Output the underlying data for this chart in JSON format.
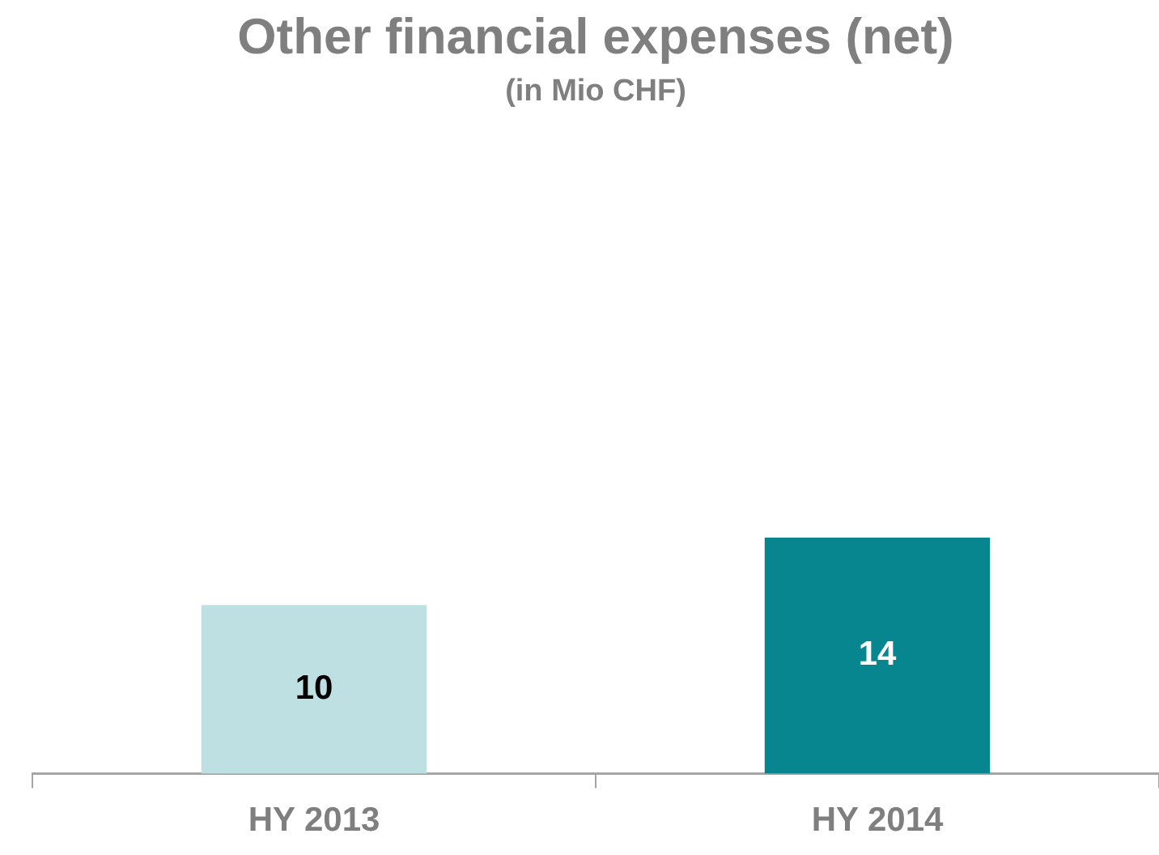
{
  "chart_data": {
    "type": "bar",
    "title": "Other financial expenses (net)",
    "subtitle": "(in Mio CHF)",
    "categories": [
      "HY 2013",
      "HY 2014"
    ],
    "values": [
      10,
      14
    ],
    "colors": [
      "#bfe0e3",
      "#07868f"
    ],
    "data_labels": true,
    "grid": false,
    "legend": false,
    "tick_labels": "x"
  }
}
